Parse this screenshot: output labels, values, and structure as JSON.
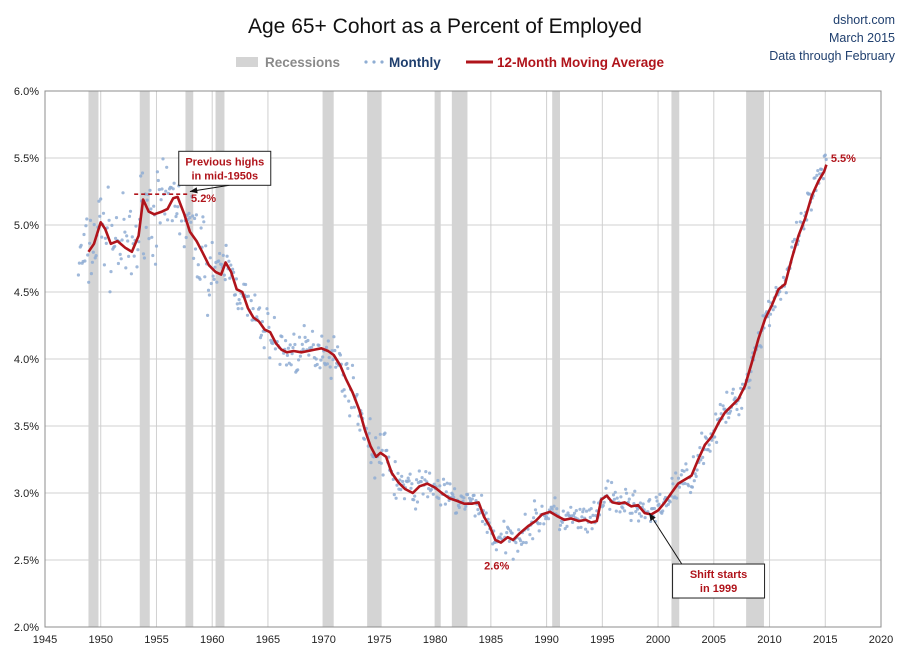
{
  "chart_data": {
    "type": "line",
    "title": "Age 65+ Cohort as a Percent of Employed",
    "source": [
      "dshort.com",
      "March 2015",
      "Data through February"
    ],
    "legend": {
      "recessions": "Recessions",
      "monthly": "Monthly",
      "moving_average": "12-Month Moving Average",
      "placement": "top-center"
    },
    "xlim": [
      1945,
      2020
    ],
    "ylim": [
      2.0,
      6.0
    ],
    "x_ticks": [
      "1945",
      "1950",
      "1955",
      "1960",
      "1965",
      "1970",
      "1975",
      "1980",
      "1985",
      "1990",
      "1995",
      "2000",
      "2005",
      "2010",
      "2015",
      "2020"
    ],
    "y_ticks": [
      "2.0%",
      "2.5%",
      "3.0%",
      "3.5%",
      "4.0%",
      "4.5%",
      "5.0%",
      "5.5%",
      "6.0%"
    ],
    "grid": true,
    "colors": {
      "recession": "#d4d4d4",
      "monthly": "#8fadd3",
      "moving_average": "#b0141b",
      "source": "#1f3f6e",
      "grid": "#d0d0d0"
    },
    "recessions": [
      [
        1948.9,
        1949.8
      ],
      [
        1953.5,
        1954.4
      ],
      [
        1957.6,
        1958.3
      ],
      [
        1960.3,
        1961.1
      ],
      [
        1969.9,
        1970.9
      ],
      [
        1973.9,
        1975.2
      ],
      [
        1980.0,
        1980.5
      ],
      [
        1981.5,
        1982.9
      ],
      [
        1990.5,
        1991.2
      ],
      [
        2001.2,
        2001.9
      ],
      [
        2007.9,
        2009.5
      ]
    ],
    "series": [
      {
        "name": "12-Month Moving Average",
        "x": [
          1948.9,
          1949.4,
          1950.0,
          1950.4,
          1950.9,
          1951.5,
          1952.2,
          1952.8,
          1953.4,
          1953.8,
          1954.3,
          1954.8,
          1955.5,
          1956.0,
          1956.5,
          1956.9,
          1957.5,
          1958.0,
          1958.6,
          1959.1,
          1959.7,
          1960.3,
          1960.8,
          1961.2,
          1961.7,
          1962.2,
          1962.7,
          1963.2,
          1963.7,
          1964.2,
          1964.7,
          1965.2,
          1965.7,
          1966.2,
          1966.7,
          1967.3,
          1968.0,
          1968.6,
          1969.2,
          1969.8,
          1970.4,
          1970.9,
          1971.5,
          1972.0,
          1972.6,
          1973.2,
          1973.7,
          1974.2,
          1974.7,
          1975.1,
          1975.6,
          1976.1,
          1976.7,
          1977.3,
          1978.0,
          1978.6,
          1979.3,
          1980.0,
          1980.6,
          1981.3,
          1982.0,
          1982.6,
          1983.3,
          1983.9,
          1984.4,
          1984.9,
          1985.4,
          1985.9,
          1986.5,
          1987.0,
          1987.6,
          1988.3,
          1989.0,
          1989.6,
          1990.3,
          1990.9,
          1991.6,
          1992.2,
          1992.9,
          1993.5,
          1994.0,
          1994.5,
          1994.9,
          1995.4,
          1995.9,
          1996.5,
          1997.0,
          1997.6,
          1998.2,
          1998.8,
          1999.4,
          2000.0,
          2000.6,
          2001.2,
          2001.8,
          2002.4,
          2003.0,
          2003.6,
          2004.2,
          2004.8,
          2005.4,
          2006.0,
          2006.6,
          2007.2,
          2007.8,
          2008.4,
          2009.0,
          2009.6,
          2010.2,
          2010.8,
          2011.4,
          2012.0,
          2012.6,
          2013.2,
          2013.8,
          2014.4,
          2014.9,
          2015.1
        ],
        "values": [
          4.8,
          4.86,
          5.02,
          4.97,
          4.86,
          4.88,
          4.83,
          4.8,
          4.92,
          5.19,
          5.1,
          5.08,
          5.1,
          5.12,
          5.2,
          5.21,
          5.08,
          4.95,
          4.88,
          4.8,
          4.7,
          4.65,
          4.63,
          4.72,
          4.65,
          4.52,
          4.5,
          4.38,
          4.31,
          4.28,
          4.22,
          4.2,
          4.12,
          4.07,
          4.05,
          4.06,
          4.05,
          4.06,
          4.07,
          4.08,
          4.06,
          4.03,
          3.95,
          3.85,
          3.75,
          3.62,
          3.47,
          3.35,
          3.27,
          3.3,
          3.27,
          3.15,
          3.08,
          3.03,
          3.0,
          3.05,
          3.07,
          3.04,
          3.0,
          2.96,
          2.94,
          2.92,
          2.92,
          2.93,
          2.82,
          2.75,
          2.65,
          2.63,
          2.67,
          2.65,
          2.7,
          2.75,
          2.79,
          2.84,
          2.86,
          2.83,
          2.8,
          2.81,
          2.79,
          2.8,
          2.78,
          2.79,
          2.95,
          2.98,
          2.93,
          2.92,
          2.93,
          2.9,
          2.91,
          2.85,
          2.84,
          2.87,
          2.93,
          3.0,
          3.07,
          3.1,
          3.13,
          3.25,
          3.36,
          3.42,
          3.52,
          3.6,
          3.65,
          3.7,
          3.8,
          3.97,
          4.15,
          4.3,
          4.4,
          4.52,
          4.56,
          4.75,
          4.92,
          5.05,
          5.22,
          5.33,
          5.4,
          5.45
        ]
      }
    ],
    "monthly_x_range": [
      1948.0,
      2015.1
    ],
    "annotations": [
      {
        "text": "5.2%",
        "x": 1958.1,
        "y": 5.2
      },
      {
        "text": "2.6%",
        "x": 1984.4,
        "y": 2.46
      },
      {
        "text": "5.5%",
        "x": 2015.5,
        "y": 5.5
      }
    ],
    "callouts": [
      {
        "lines": [
          "Previous highs",
          "in mid-1950s"
        ],
        "box_x": 1957.0,
        "box_y": 5.55,
        "arrow_to_x": 1958.0,
        "arrow_to_y": 5.25
      },
      {
        "lines": [
          "Shift starts",
          "in 1999"
        ],
        "box_x": 2001.3,
        "box_y": 2.47,
        "arrow_to_x": 1999.2,
        "arrow_to_y": 2.85
      }
    ],
    "reference_line": {
      "y": 5.23,
      "x_from": 1953.0,
      "x_to": 1958.0
    }
  }
}
